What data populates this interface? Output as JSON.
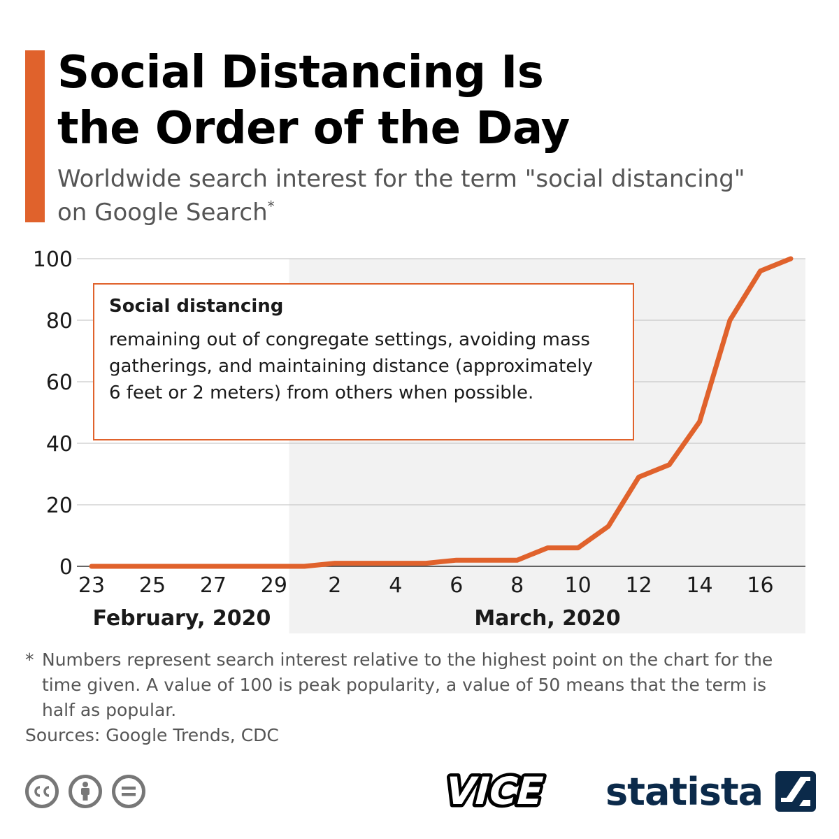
{
  "title_line1": "Social Distancing Is",
  "title_line2": "the Order of the Day",
  "subtitle_line1": "Worldwide search interest for the term \"social distancing\"",
  "subtitle_line2": "on Google Search",
  "subtitle_mark": "*",
  "definition": {
    "heading": "Social distancing",
    "lines": [
      "remaining out of congregate settings, avoiding mass",
      "gatherings, and maintaining distance (approximately",
      "6 feet or 2 meters) from others when possible."
    ]
  },
  "footnote": {
    "mark": "*",
    "text": "Numbers represent search interest relative to the highest point on the chart for the time given. A value of 100 is peak popularity, a value of 50 means that the term is half as popular."
  },
  "sources": "Sources: Google Trends, CDC",
  "brands": [
    "VICE",
    "statista"
  ],
  "colors": {
    "accent": "#e0622c",
    "line": "#e0622c",
    "shade": "#f2f2f2",
    "grid": "#bdbdbd",
    "brand_navy": "#0b2a4a"
  },
  "icons": [
    "cc-icon",
    "by-icon",
    "nd-icon"
  ],
  "chart_data": {
    "type": "line",
    "title": "",
    "xlabel": "",
    "ylabel": "",
    "ylim": [
      0,
      100
    ],
    "yticks": [
      0,
      20,
      40,
      60,
      80,
      100
    ],
    "grid": true,
    "x": [
      "2020-02-23",
      "2020-02-24",
      "2020-02-25",
      "2020-02-26",
      "2020-02-27",
      "2020-02-28",
      "2020-02-29",
      "2020-03-01",
      "2020-03-02",
      "2020-03-03",
      "2020-03-04",
      "2020-03-05",
      "2020-03-06",
      "2020-03-07",
      "2020-03-08",
      "2020-03-09",
      "2020-03-10",
      "2020-03-11",
      "2020-03-12",
      "2020-03-13",
      "2020-03-14",
      "2020-03-15",
      "2020-03-16",
      "2020-03-17"
    ],
    "values": [
      0,
      0,
      0,
      0,
      0,
      0,
      0,
      0,
      1,
      1,
      1,
      1,
      2,
      2,
      2,
      6,
      6,
      13,
      29,
      33,
      47,
      80,
      96,
      100
    ],
    "xtick_labels": [
      "23",
      "25",
      "27",
      "29",
      "2",
      "4",
      "6",
      "8",
      "10",
      "12",
      "14",
      "16"
    ],
    "xtick_dates": [
      "2020-02-23",
      "2020-02-25",
      "2020-02-27",
      "2020-02-29",
      "2020-03-02",
      "2020-03-04",
      "2020-03-06",
      "2020-03-08",
      "2020-03-10",
      "2020-03-12",
      "2020-03-14",
      "2020-03-16"
    ],
    "month_labels": [
      {
        "label": "February, 2020",
        "shaded": false
      },
      {
        "label": "March, 2020",
        "shaded": true
      }
    ],
    "shaded_from": "2020-03-01"
  }
}
